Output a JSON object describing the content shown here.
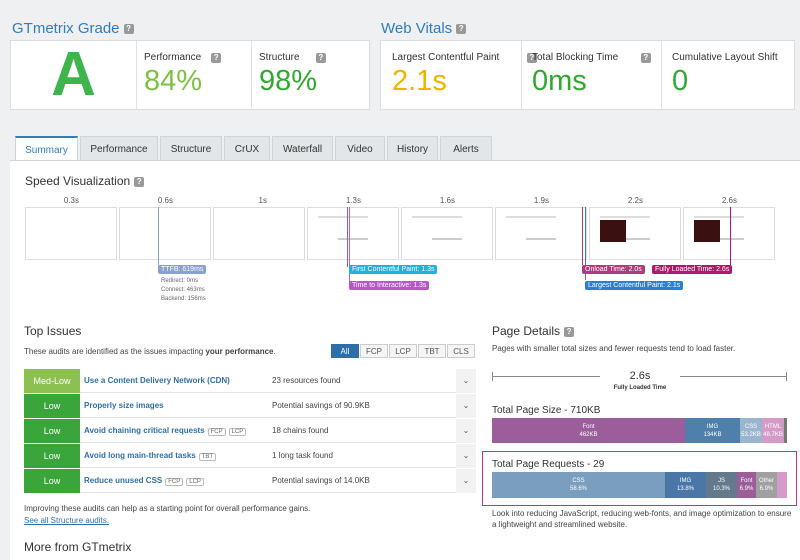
{
  "help": "?",
  "chevron": "⌄",
  "grade": {
    "title": "GTmetrix Grade",
    "letter": "A",
    "metrics": [
      {
        "label": "Performance",
        "value": "84%"
      },
      {
        "label": "Structure",
        "value": "98%"
      }
    ]
  },
  "vitals": {
    "title": "Web Vitals",
    "metrics": [
      {
        "label": "Largest Contentful Paint",
        "value": "2.1s"
      },
      {
        "label": "Total Blocking Time",
        "value": "0ms"
      },
      {
        "label": "Cumulative Layout Shift",
        "value": "0"
      }
    ]
  },
  "tabs": [
    "Summary",
    "Performance",
    "Structure",
    "CrUX",
    "Waterfall",
    "Video",
    "History",
    "Alerts"
  ],
  "speed": {
    "title": "Speed Visualization",
    "times": [
      "0.3s",
      "0.6s",
      "1s",
      "1.3s",
      "1.6s",
      "1.9s",
      "2.2s",
      "2.6s"
    ],
    "ttfb": {
      "label": "TTFB: 619ms",
      "details": [
        "Redirect: 0ms",
        "Connect: 463ms",
        "Backend: 156ms"
      ]
    },
    "fcp": "First Contentful Paint: 1.3s",
    "tti": "Time to Interactive: 1.3s",
    "onload": "Onload Time: 2.0s",
    "fully": "Fully Loaded Time: 2.6s",
    "lcp": "Largest Contentful Paint: 2.1s"
  },
  "issues": {
    "title": "Top Issues",
    "desc": "These audits are identified as the issues impacting",
    "desc_bold": "your performance",
    "filters": [
      "All",
      "FCP",
      "LCP",
      "TBT",
      "CLS"
    ],
    "rows": [
      {
        "badge": "Med-Low",
        "title": "Use a Content Delivery Network (CDN)",
        "tags": [],
        "detail": "23 resources found"
      },
      {
        "badge": "Low",
        "title": "Properly size images",
        "tags": [],
        "detail": "Potential savings of 90.9KB"
      },
      {
        "badge": "Low",
        "title": "Avoid chaining critical requests",
        "tags": [
          "FCP",
          "LCP"
        ],
        "detail": "18 chains found"
      },
      {
        "badge": "Low",
        "title": "Avoid long main-thread tasks",
        "tags": [
          "TBT"
        ],
        "detail": "1 long task found"
      },
      {
        "badge": "Low",
        "title": "Reduce unused CSS",
        "tags": [
          "FCP",
          "LCP"
        ],
        "detail": "Potential savings of 14.0KB"
      }
    ],
    "footer": "Improving these audits can help as a starting point for overall performance gains.",
    "link": "See all Structure audits."
  },
  "more": "More from GTmetrix",
  "details": {
    "title": "Page Details",
    "desc": "Pages with smaller total sizes and fewer requests tend to load faster.",
    "loaded_value": "2.6s",
    "loaded_label": "Fully Loaded Time",
    "size_title": "Total Page Size - 710KB",
    "size_segments": [
      {
        "name": "Font",
        "value": "462KB"
      },
      {
        "name": "IMG",
        "value": "134KB"
      },
      {
        "name": "CSS",
        "value": "53.2KB"
      },
      {
        "name": "HTML",
        "value": "48.7KB"
      }
    ],
    "req_title": "Total Page Requests - 29",
    "req_segments": [
      {
        "name": "CSS",
        "value": "58.6%"
      },
      {
        "name": "IMG",
        "value": "13.8%"
      },
      {
        "name": "JS",
        "value": "10.3%"
      },
      {
        "name": "Font",
        "value": "6.9%"
      },
      {
        "name": "Other",
        "value": "6.9%"
      }
    ],
    "advice": "Look into reducing JavaScript, reducing web-fonts, and image optimization to ensure a lightweight and streamlined website."
  }
}
